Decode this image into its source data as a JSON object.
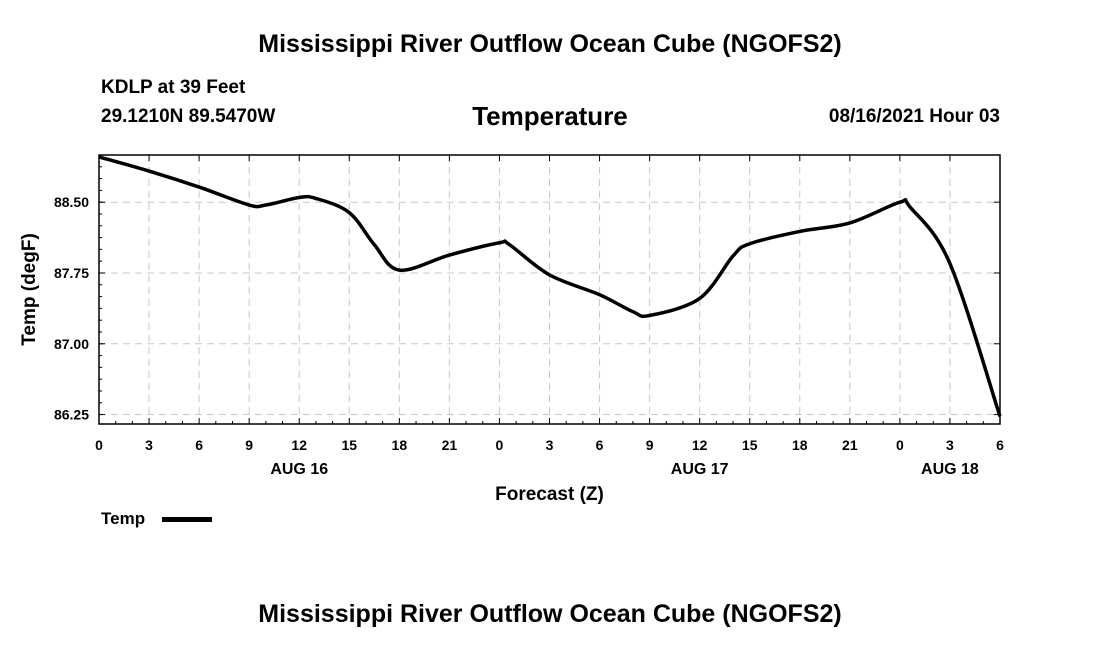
{
  "page": {
    "title_top": "Mississippi River Outflow Ocean Cube (NGOFS2)",
    "title_bottom": "Mississippi River Outflow Ocean Cube (NGOFS2)",
    "station": "KDLP at 39 Feet",
    "coords": "29.1210N  89.5470W",
    "datetime": "08/16/2021 Hour 03"
  },
  "chart_data": {
    "type": "line",
    "title": "Temperature",
    "xlabel": "Forecast (Z)",
    "ylabel": "Temp (degF)",
    "xlim": [
      0,
      54
    ],
    "ylim": [
      86.15,
      89.0
    ],
    "yticks": [
      86.25,
      87.0,
      87.75,
      88.5
    ],
    "ytick_labels": [
      "86.25",
      "87.00",
      "87.75",
      "88.50"
    ],
    "xticks": [
      0,
      3,
      6,
      9,
      12,
      15,
      18,
      21,
      24,
      27,
      30,
      33,
      36,
      39,
      42,
      45,
      48,
      51,
      54
    ],
    "xtick_labels": [
      "0",
      "3",
      "6",
      "9",
      "12",
      "15",
      "18",
      "21",
      "0",
      "3",
      "6",
      "9",
      "12",
      "15",
      "18",
      "21",
      "0",
      "3",
      "6"
    ],
    "date_labels": [
      {
        "x": 12,
        "label": "AUG 16"
      },
      {
        "x": 36,
        "label": "AUG 17"
      },
      {
        "x": 51,
        "label": "AUG 18"
      }
    ],
    "grid": true,
    "legend": [
      {
        "name": "Temp",
        "color": "#000000"
      }
    ],
    "series": [
      {
        "name": "Temp",
        "x": [
          0,
          3,
          6,
          9,
          10,
          12,
          13,
          15,
          16.5,
          18,
          21,
          24,
          24.6,
          27,
          30,
          32,
          33,
          36,
          38,
          39,
          42,
          45,
          48,
          48.6,
          51,
          54
        ],
        "values": [
          88.98,
          88.83,
          88.66,
          88.47,
          88.47,
          88.55,
          88.54,
          88.39,
          88.05,
          87.78,
          87.94,
          88.07,
          88.05,
          87.73,
          87.52,
          87.34,
          87.3,
          87.48,
          87.93,
          88.06,
          88.19,
          88.28,
          88.5,
          88.45,
          87.85,
          86.23
        ]
      }
    ]
  }
}
